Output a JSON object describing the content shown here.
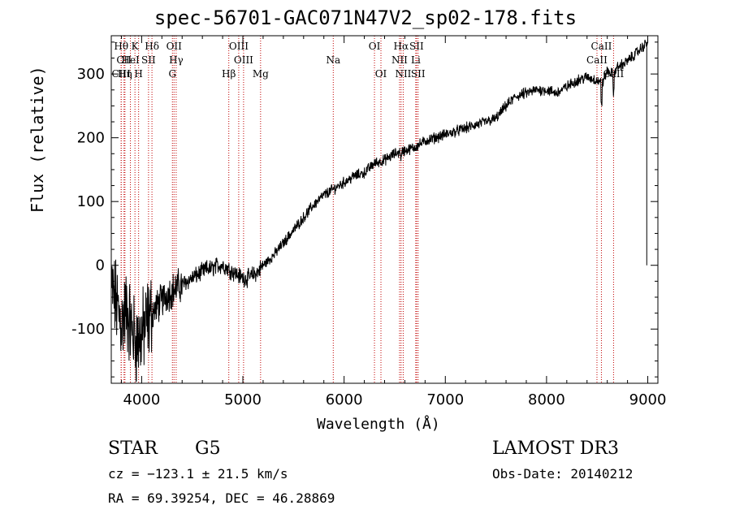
{
  "chart_data": {
    "type": "line",
    "title": "spec-56701-GAC071N47V2_sp02-178.fits",
    "xlabel": "Wavelength (Å)",
    "ylabel": "Flux (relative)",
    "xlim": [
      3700,
      9100
    ],
    "ylim": [
      -185,
      360
    ],
    "xticks": [
      4000,
      5000,
      6000,
      7000,
      8000,
      9000
    ],
    "yticks": [
      -100,
      0,
      100,
      200,
      300
    ],
    "series": [
      {
        "name": "flux",
        "x": [
          3700,
          3750,
          3800,
          3850,
          3900,
          3950,
          4000,
          4050,
          4100,
          4150,
          4200,
          4250,
          4300,
          4350,
          4400,
          4450,
          4500,
          4550,
          4600,
          4650,
          4700,
          4750,
          4800,
          4850,
          4900,
          4950,
          5000,
          5050,
          5100,
          5150,
          5200,
          5300,
          5400,
          5500,
          5600,
          5700,
          5800,
          5900,
          6000,
          6100,
          6200,
          6300,
          6400,
          6500,
          6600,
          6700,
          6800,
          6900,
          7000,
          7100,
          7200,
          7300,
          7400,
          7500,
          7600,
          7700,
          7800,
          7900,
          8000,
          8100,
          8200,
          8300,
          8400,
          8500,
          8550,
          8600,
          8650,
          8700,
          8800,
          8900,
          9000
        ],
        "y": [
          -40,
          -60,
          -90,
          -70,
          -100,
          -120,
          -110,
          -90,
          -75,
          -65,
          -55,
          -45,
          -40,
          -35,
          -30,
          -25,
          -20,
          -15,
          -10,
          -5,
          -5,
          0,
          0,
          -5,
          -10,
          -15,
          -20,
          -20,
          -15,
          -10,
          0,
          15,
          35,
          55,
          75,
          95,
          110,
          120,
          130,
          140,
          145,
          160,
          165,
          175,
          180,
          185,
          195,
          200,
          205,
          210,
          215,
          220,
          225,
          230,
          250,
          265,
          270,
          275,
          275,
          270,
          280,
          290,
          295,
          290,
          285,
          305,
          300,
          310,
          320,
          335,
          350
        ]
      }
    ],
    "lines": [
      {
        "name": "Hθ",
        "wl": 3798,
        "row": 0
      },
      {
        "name": "CII",
        "wl": 3826,
        "row": 1
      },
      {
        "name": "CIII",
        "wl": 3798,
        "row": 2
      },
      {
        "name": "Hη",
        "wl": 3835,
        "row": 2
      },
      {
        "name": "K",
        "wl": 3934,
        "row": 0
      },
      {
        "name": "HeI",
        "wl": 3889,
        "row": 1
      },
      {
        "name": "H",
        "wl": 3970,
        "row": 2
      },
      {
        "name": "SII",
        "wl": 4068,
        "row": 1
      },
      {
        "name": "Hδ",
        "wl": 4102,
        "row": 0
      },
      {
        "name": "OII",
        "wl": 4320,
        "row": 0
      },
      {
        "name": "Hγ",
        "wl": 4341,
        "row": 1
      },
      {
        "name": "G",
        "wl": 4304,
        "row": 2
      },
      {
        "name": "Hβ",
        "wl": 4861,
        "row": 2
      },
      {
        "name": "OIII",
        "wl": 4959,
        "row": 0
      },
      {
        "name": "OIII",
        "wl": 5007,
        "row": 1
      },
      {
        "name": "Mg",
        "wl": 5175,
        "row": 2
      },
      {
        "name": "Na",
        "wl": 5893,
        "row": 1
      },
      {
        "name": "OI",
        "wl": 6300,
        "row": 0
      },
      {
        "name": "OI",
        "wl": 6364,
        "row": 2
      },
      {
        "name": "Hα",
        "wl": 6563,
        "row": 0
      },
      {
        "name": "NII",
        "wl": 6548,
        "row": 1
      },
      {
        "name": "NII",
        "wl": 6584,
        "row": 2
      },
      {
        "name": "SII",
        "wl": 6716,
        "row": 0
      },
      {
        "name": "Li",
        "wl": 6708,
        "row": 1
      },
      {
        "name": "SII",
        "wl": 6731,
        "row": 2
      },
      {
        "name": "CaII",
        "wl": 8542,
        "row": 0
      },
      {
        "name": "CaII",
        "wl": 8498,
        "row": 1
      },
      {
        "name": "CaII",
        "wl": 8662,
        "row": 2
      }
    ]
  },
  "footer": {
    "class_label": "STAR",
    "subclass": "G5",
    "survey": "LAMOST DR3",
    "cz": "cz = −123.1 ± 21.5 km/s",
    "obs_date": "Obs-Date: 20140212",
    "radec": "RA =  69.39254, DEC =  46.28869"
  }
}
